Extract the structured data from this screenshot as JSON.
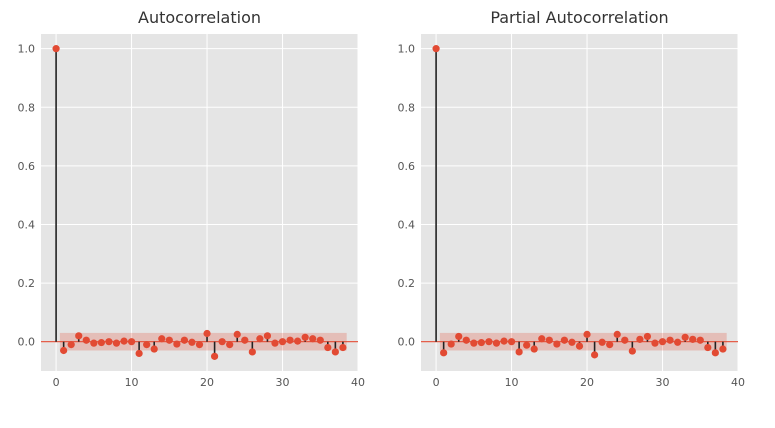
{
  "colors": {
    "figure_background": "#ffffff",
    "axes_background": "#e5e5e5",
    "grid": "#ffffff",
    "marker": "#e24a33",
    "stem": "#222222",
    "confidence_band": "#e24a33",
    "zero_line": "#e24a33",
    "tick_label": "#555555",
    "title": "#333333"
  },
  "chart_data": [
    {
      "type": "stem",
      "title": "Autocorrelation",
      "xlabel": "",
      "ylabel": "",
      "xlim": [
        -2,
        40
      ],
      "ylim": [
        -0.1,
        1.05
      ],
      "x_ticks": [
        "0",
        "10",
        "20",
        "30",
        "40"
      ],
      "y_ticks": [
        "0.0",
        "0.2",
        "0.4",
        "0.6",
        "0.8",
        "1.0"
      ],
      "grid": true,
      "confidence_band": [
        -0.03,
        0.03
      ],
      "lags": [
        0,
        1,
        2,
        3,
        4,
        5,
        6,
        7,
        8,
        9,
        10,
        11,
        12,
        13,
        14,
        15,
        16,
        17,
        18,
        19,
        20,
        21,
        22,
        23,
        24,
        25,
        26,
        27,
        28,
        29,
        30,
        31,
        32,
        33,
        34,
        35,
        36,
        37,
        38
      ],
      "values": [
        1.0,
        -0.03,
        -0.01,
        0.02,
        0.005,
        -0.005,
        -0.003,
        0.0,
        -0.005,
        0.002,
        0.0,
        -0.04,
        -0.01,
        -0.025,
        0.01,
        0.005,
        -0.008,
        0.005,
        -0.002,
        -0.01,
        0.028,
        -0.05,
        0.0,
        -0.01,
        0.025,
        0.005,
        -0.035,
        0.01,
        0.02,
        -0.005,
        0.0,
        0.005,
        0.002,
        0.015,
        0.01,
        0.005,
        -0.02,
        -0.035,
        -0.02
      ]
    },
    {
      "type": "stem",
      "title": "Partial Autocorrelation",
      "xlabel": "",
      "ylabel": "",
      "xlim": [
        -2,
        40
      ],
      "ylim": [
        -0.1,
        1.05
      ],
      "x_ticks": [
        "0",
        "10",
        "20",
        "30",
        "40"
      ],
      "y_ticks": [
        "0.0",
        "0.2",
        "0.4",
        "0.6",
        "0.8",
        "1.0"
      ],
      "grid": true,
      "confidence_band": [
        -0.03,
        0.03
      ],
      "lags": [
        0,
        1,
        2,
        3,
        4,
        5,
        6,
        7,
        8,
        9,
        10,
        11,
        12,
        13,
        14,
        15,
        16,
        17,
        18,
        19,
        20,
        21,
        22,
        23,
        24,
        25,
        26,
        27,
        28,
        29,
        30,
        31,
        32,
        33,
        34,
        35,
        36,
        37,
        38
      ],
      "values": [
        1.0,
        -0.038,
        -0.008,
        0.018,
        0.005,
        -0.005,
        -0.003,
        0.0,
        -0.005,
        0.002,
        0.0,
        -0.035,
        -0.012,
        -0.025,
        0.01,
        0.005,
        -0.008,
        0.005,
        -0.002,
        -0.015,
        0.025,
        -0.045,
        -0.002,
        -0.01,
        0.025,
        0.005,
        -0.032,
        0.008,
        0.018,
        -0.005,
        0.0,
        0.005,
        -0.002,
        0.015,
        0.008,
        0.005,
        -0.02,
        -0.038,
        -0.025
      ]
    }
  ]
}
